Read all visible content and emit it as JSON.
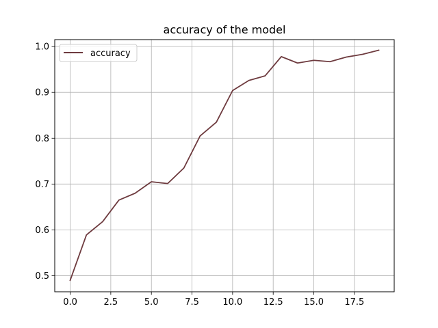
{
  "chart_data": {
    "type": "line",
    "title": "accuracy of the model",
    "xlabel": "",
    "ylabel": "",
    "x": [
      0,
      1,
      2,
      3,
      4,
      5,
      6,
      7,
      8,
      9,
      10,
      11,
      12,
      13,
      14,
      15,
      16,
      17,
      18,
      19
    ],
    "series": [
      {
        "name": "accuracy",
        "color": "#6e3b3f",
        "values": [
          0.49,
          0.589,
          0.618,
          0.665,
          0.68,
          0.705,
          0.701,
          0.735,
          0.805,
          0.835,
          0.904,
          0.926,
          0.936,
          0.978,
          0.964,
          0.97,
          0.967,
          0.977,
          0.983,
          0.992
        ]
      }
    ],
    "xlim": [
      -0.95,
      19.95
    ],
    "ylim": [
      0.4649,
      1.0151
    ],
    "xticks": [
      0.0,
      2.5,
      5.0,
      7.5,
      10.0,
      12.5,
      15.0,
      17.5
    ],
    "xtick_labels": [
      "0.0",
      "2.5",
      "5.0",
      "7.5",
      "10.0",
      "12.5",
      "15.0",
      "17.5"
    ],
    "yticks": [
      0.5,
      0.6,
      0.7,
      0.8,
      0.9,
      1.0
    ],
    "ytick_labels": [
      "0.5",
      "0.6",
      "0.7",
      "0.8",
      "0.9",
      "1.0"
    ],
    "grid": true,
    "legend": "upper-left"
  }
}
